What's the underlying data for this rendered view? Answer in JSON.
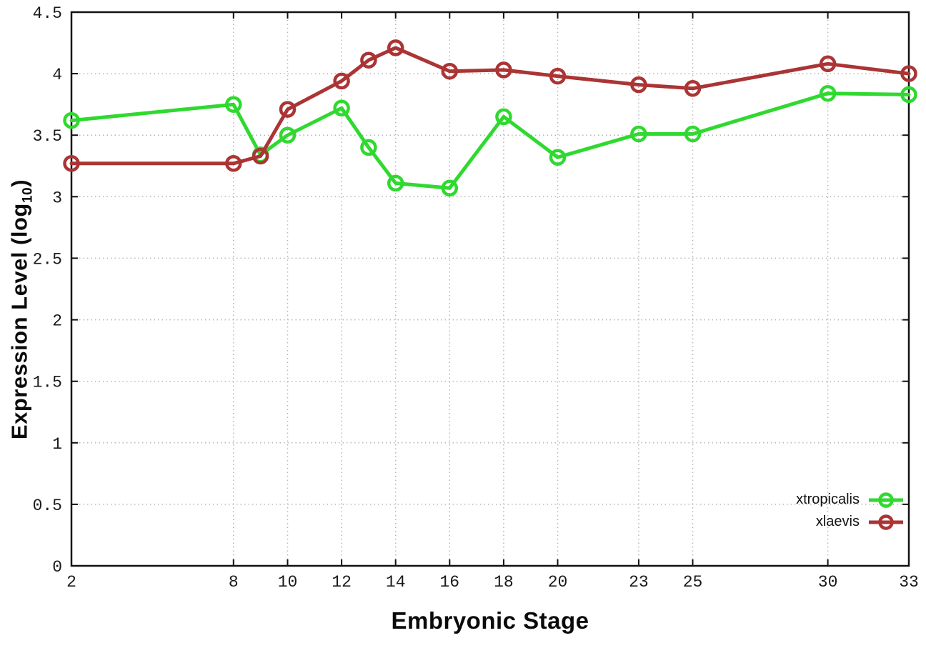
{
  "chart_data": {
    "type": "line",
    "title": "",
    "xlabel": "Embryonic Stage",
    "ylabel": {
      "pre": "Expression Level (log",
      "sub": "10",
      "post": ")"
    },
    "xlim": [
      2,
      33
    ],
    "ylim": [
      0,
      4.5
    ],
    "grid": true,
    "legend_position": "inside-bottom-right",
    "x": [
      2,
      8,
      9,
      10,
      12,
      13,
      14,
      16,
      18,
      20,
      23,
      25,
      30,
      33
    ],
    "xticks": {
      "values": [
        2,
        8,
        10,
        12,
        14,
        16,
        18,
        20,
        23,
        25,
        30,
        33
      ],
      "labels": [
        "2",
        "8",
        "10",
        "12",
        "14",
        "16",
        "18",
        "20",
        "23",
        "25",
        "30",
        "33"
      ]
    },
    "yticks": {
      "values": [
        0,
        0.5,
        1,
        1.5,
        2,
        2.5,
        3,
        3.5,
        4,
        4.5
      ],
      "labels": [
        "0",
        "0.5",
        "1",
        "1.5",
        "2",
        "2.5",
        "3",
        "3.5",
        "4",
        "4.5"
      ]
    },
    "series": [
      {
        "name": "xtropicalis",
        "color": "#2fd92f",
        "marker": "open-circle",
        "values": [
          3.62,
          3.75,
          3.34,
          3.5,
          3.72,
          3.4,
          3.11,
          3.07,
          3.65,
          3.32,
          3.51,
          3.51,
          3.84,
          3.83
        ]
      },
      {
        "name": "xlaevis",
        "color": "#ab3434",
        "marker": "open-circle",
        "values": [
          3.27,
          3.27,
          3.33,
          3.71,
          3.94,
          4.11,
          4.21,
          4.02,
          4.03,
          3.98,
          3.91,
          3.88,
          4.08,
          4.0
        ]
      }
    ],
    "colors": {
      "axis": "#111111",
      "tick_text": "#1a1a1a",
      "grid": "#b5b5b5",
      "background": "#ffffff"
    }
  }
}
